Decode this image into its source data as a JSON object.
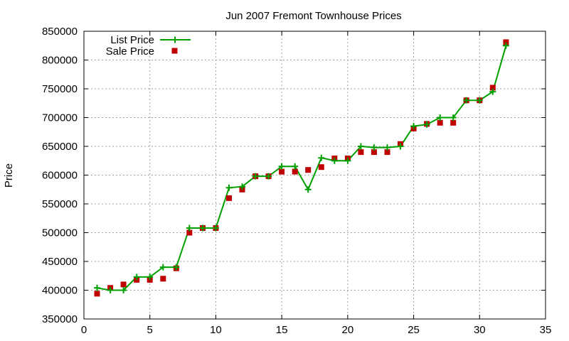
{
  "chart_data": {
    "type": "line",
    "title": "Jun 2007 Fremont Townhouse Prices",
    "xlabel": "",
    "ylabel": "Price",
    "xlim": [
      0,
      35
    ],
    "ylim": [
      350000,
      850000
    ],
    "xticks": [
      "0",
      "5",
      "10",
      "15",
      "20",
      "25",
      "30",
      "35"
    ],
    "yticks": [
      "350000",
      "400000",
      "450000",
      "500000",
      "550000",
      "600000",
      "650000",
      "700000",
      "750000",
      "800000",
      "850000"
    ],
    "grid": true,
    "legend_position": "top-left",
    "x": [
      1,
      2,
      3,
      4,
      5,
      6,
      7,
      8,
      9,
      10,
      11,
      12,
      13,
      14,
      15,
      16,
      17,
      18,
      19,
      20,
      21,
      22,
      23,
      24,
      25,
      26,
      27,
      28,
      29,
      30,
      31,
      32
    ],
    "series": [
      {
        "name": "List Price",
        "style": "line-with-plus-markers",
        "color": "#00a000",
        "values": [
          404000,
          400000,
          400000,
          423000,
          423000,
          440000,
          440000,
          508000,
          508000,
          508000,
          578000,
          580000,
          598000,
          598000,
          615000,
          615000,
          575000,
          630000,
          625000,
          625000,
          650000,
          648000,
          648000,
          650000,
          685000,
          688000,
          700000,
          700000,
          730000,
          730000,
          745000,
          825000
        ]
      },
      {
        "name": "Sale Price",
        "style": "square-markers",
        "color": "#c00000",
        "values": [
          394000,
          404000,
          410000,
          418000,
          418000,
          420000,
          438000,
          500000,
          508000,
          508000,
          560000,
          575000,
          598000,
          598000,
          606000,
          606000,
          609000,
          614000,
          629000,
          629000,
          640000,
          640000,
          640000,
          654000,
          681000,
          689000,
          691000,
          691000,
          730000,
          730000,
          752000,
          831000
        ]
      }
    ]
  }
}
